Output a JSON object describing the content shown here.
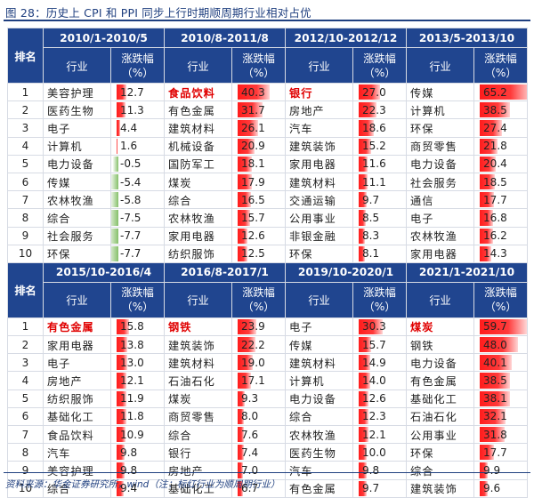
{
  "figure_title": "图 28：历史上 CPI 和 PPI 同步上行时期顺周期行业相对占优",
  "rank_label": "排名",
  "industry_label": "行业",
  "change_label_l1": "涨跌幅",
  "change_label_l2": "（%）",
  "source": "资料来源：华金证券研究所，wind（注：标红行业为顺周期行业）",
  "blocks": [
    {
      "periods": [
        "2010/1-2010/5",
        "2010/8-2011/8",
        "2012/10-2012/12",
        "2013/5-2013/10"
      ],
      "rows": [
        {
          "rank": "1",
          "cells": [
            [
              "美容护理",
              "12.7",
              12.7,
              false
            ],
            [
              "食品饮料",
              "40.3",
              40.3,
              true
            ],
            [
              "银行",
              "27.0",
              27.0,
              true
            ],
            [
              "传媒",
              "65.2",
              65.2,
              false
            ]
          ]
        },
        {
          "rank": "2",
          "cells": [
            [
              "医药生物",
              "11.3",
              11.3,
              false
            ],
            [
              "有色金属",
              "31.7",
              31.7,
              false
            ],
            [
              "房地产",
              "22.3",
              22.3,
              false
            ],
            [
              "计算机",
              "38.5",
              38.5,
              false
            ]
          ]
        },
        {
          "rank": "3",
          "cells": [
            [
              "电子",
              "4.4",
              4.4,
              false
            ],
            [
              "建筑材料",
              "26.1",
              26.1,
              false
            ],
            [
              "汽车",
              "18.6",
              18.6,
              false
            ],
            [
              "环保",
              "27.4",
              27.4,
              false
            ]
          ]
        },
        {
          "rank": "4",
          "cells": [
            [
              "计算机",
              "1.6",
              1.6,
              false
            ],
            [
              "机械设备",
              "20.9",
              20.9,
              false
            ],
            [
              "建筑装饰",
              "15.2",
              15.2,
              false
            ],
            [
              "商贸零售",
              "21.8",
              21.8,
              false
            ]
          ]
        },
        {
          "rank": "5",
          "cells": [
            [
              "电力设备",
              "-0.5",
              -0.5,
              false
            ],
            [
              "国防军工",
              "18.1",
              18.1,
              false
            ],
            [
              "家用电器",
              "11.6",
              11.6,
              false
            ],
            [
              "电力设备",
              "20.4",
              20.4,
              false
            ]
          ]
        },
        {
          "rank": "6",
          "cells": [
            [
              "传媒",
              "-5.4",
              -5.4,
              false
            ],
            [
              "煤炭",
              "17.9",
              17.9,
              false
            ],
            [
              "建筑材料",
              "11.1",
              11.1,
              false
            ],
            [
              "社会服务",
              "18.5",
              18.5,
              false
            ]
          ]
        },
        {
          "rank": "7",
          "cells": [
            [
              "农林牧渔",
              "-5.8",
              -5.8,
              false
            ],
            [
              "综合",
              "16.5",
              16.5,
              false
            ],
            [
              "交通运输",
              "9.7",
              9.7,
              false
            ],
            [
              "通信",
              "17.7",
              17.7,
              false
            ]
          ]
        },
        {
          "rank": "8",
          "cells": [
            [
              "综合",
              "-7.5",
              -7.5,
              false
            ],
            [
              "农林牧渔",
              "15.7",
              15.7,
              false
            ],
            [
              "公用事业",
              "8.5",
              8.5,
              false
            ],
            [
              "电子",
              "16.8",
              16.8,
              false
            ]
          ]
        },
        {
          "rank": "9",
          "cells": [
            [
              "社会服务",
              "-7.7",
              -7.7,
              false
            ],
            [
              "家用电器",
              "12.6",
              12.6,
              false
            ],
            [
              "非银金融",
              "8.3",
              8.3,
              false
            ],
            [
              "农林牧渔",
              "16.2",
              16.2,
              false
            ]
          ]
        },
        {
          "rank": "10",
          "cells": [
            [
              "环保",
              "-7.7",
              -7.7,
              false
            ],
            [
              "纺织服饰",
              "12.5",
              12.5,
              false
            ],
            [
              "环保",
              "8.1",
              8.1,
              false
            ],
            [
              "家用电器",
              "14.3",
              14.3,
              false
            ]
          ]
        }
      ]
    },
    {
      "periods": [
        "2015/10-2016/4",
        "2016/8-2017/1",
        "2019/10-2020/1",
        "2021/1-2021/10"
      ],
      "rows": [
        {
          "rank": "1",
          "cells": [
            [
              "有色金属",
              "15.8",
              15.8,
              true
            ],
            [
              "钢铁",
              "23.9",
              23.9,
              true
            ],
            [
              "电子",
              "30.3",
              30.3,
              false
            ],
            [
              "煤炭",
              "59.7",
              59.7,
              true
            ]
          ]
        },
        {
          "rank": "2",
          "cells": [
            [
              "家用电器",
              "13.8",
              13.8,
              false
            ],
            [
              "建筑装饰",
              "22.2",
              22.2,
              false
            ],
            [
              "传媒",
              "15.7",
              15.7,
              false
            ],
            [
              "钢铁",
              "48.0",
              48.0,
              false
            ]
          ]
        },
        {
          "rank": "3",
          "cells": [
            [
              "电子",
              "13.0",
              13.0,
              false
            ],
            [
              "建筑材料",
              "19.0",
              19.0,
              false
            ],
            [
              "建筑材料",
              "14.9",
              14.9,
              false
            ],
            [
              "电力设备",
              "40.1",
              40.1,
              false
            ]
          ]
        },
        {
          "rank": "4",
          "cells": [
            [
              "房地产",
              "12.1",
              12.1,
              false
            ],
            [
              "石油石化",
              "17.1",
              17.1,
              false
            ],
            [
              "计算机",
              "14.0",
              14.0,
              false
            ],
            [
              "有色金属",
              "38.5",
              38.5,
              false
            ]
          ]
        },
        {
          "rank": "5",
          "cells": [
            [
              "纺织服饰",
              "11.9",
              11.9,
              false
            ],
            [
              "煤炭",
              "9.3",
              9.3,
              false
            ],
            [
              "电力设备",
              "12.6",
              12.6,
              false
            ],
            [
              "基础化工",
              "38.1",
              38.1,
              false
            ]
          ]
        },
        {
          "rank": "6",
          "cells": [
            [
              "基础化工",
              "11.8",
              11.8,
              false
            ],
            [
              "商贸零售",
              "8.0",
              8.0,
              false
            ],
            [
              "综合",
              "12.3",
              12.3,
              false
            ],
            [
              "石油石化",
              "32.1",
              32.1,
              false
            ]
          ]
        },
        {
          "rank": "7",
          "cells": [
            [
              "食品饮料",
              "10.9",
              10.9,
              false
            ],
            [
              "综合",
              "7.6",
              7.6,
              false
            ],
            [
              "农林牧渔",
              "12.1",
              12.1,
              false
            ],
            [
              "公用事业",
              "31.8",
              31.8,
              false
            ]
          ]
        },
        {
          "rank": "8",
          "cells": [
            [
              "汽车",
              "9.8",
              9.8,
              false
            ],
            [
              "银行",
              "7.4",
              7.4,
              false
            ],
            [
              "医药生物",
              "10.0",
              10.0,
              false
            ],
            [
              "环保",
              "17.7",
              17.7,
              false
            ]
          ]
        },
        {
          "rank": "9",
          "cells": [
            [
              "美容护理",
              "9.8",
              9.8,
              false
            ],
            [
              "房地产",
              "7.0",
              7.0,
              false
            ],
            [
              "汽车",
              "9.8",
              9.8,
              false
            ],
            [
              "综合",
              "9.9",
              9.9,
              false
            ]
          ]
        },
        {
          "rank": "10",
          "cells": [
            [
              "综合",
              "9.4",
              9.4,
              false
            ],
            [
              "基础化工",
              "6.7",
              6.7,
              false
            ],
            [
              "有色金属",
              "9.7",
              9.7,
              false
            ],
            [
              "建筑装饰",
              "9.6",
              9.6,
              false
            ]
          ]
        }
      ]
    }
  ]
}
